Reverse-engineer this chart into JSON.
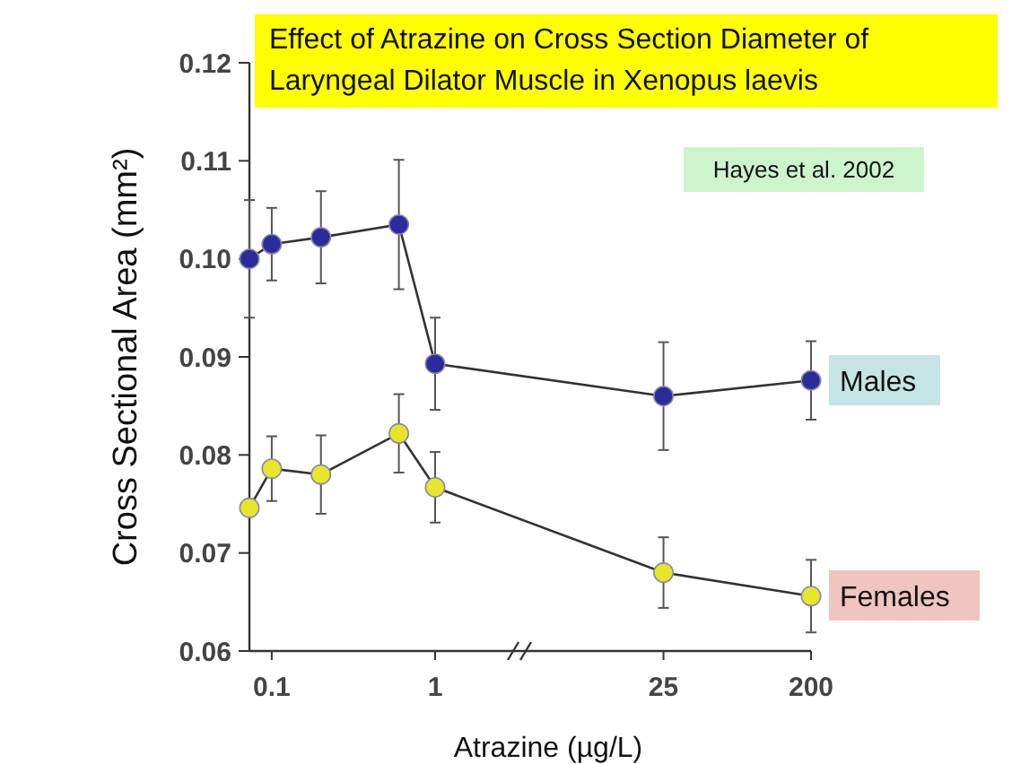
{
  "chart_data": {
    "type": "line",
    "title": "Effect of Atrazine on Cross Section Diameter of Laryngeal Dilator Muscle in Xenopus laevis",
    "xlabel": "Atrazine (µg/L)",
    "ylabel": "Cross Sectional Area (mm²)",
    "annotations": [
      "Hayes et al. 2002"
    ],
    "x": [
      0.073,
      0.1,
      0.2,
      0.6,
      1,
      25,
      200
    ],
    "series": [
      {
        "name": "Males",
        "color": "#2b2b9c",
        "values": [
          0.1,
          0.1015,
          0.1022,
          0.1035,
          0.0893,
          0.086,
          0.0876
        ],
        "errors": [
          0.006,
          0.0037,
          0.0047,
          0.0066,
          0.0047,
          0.0055,
          0.004
        ]
      },
      {
        "name": "Females",
        "color": "#e6e62a",
        "values": [
          0.0746,
          0.0786,
          0.078,
          0.0822,
          0.0767,
          0.068,
          0.0656
        ],
        "errors": [
          null,
          0.0033,
          0.004,
          0.004,
          0.0036,
          0.0036,
          0.0037
        ]
      }
    ],
    "log": "x",
    "xlim": [
      0.073,
      200
    ],
    "xticks": [
      0.1,
      1,
      25,
      200
    ],
    "ylim": [
      0.06,
      0.12
    ],
    "yticks": [
      0.06,
      0.07,
      0.08,
      0.09,
      {
        "value": 0.1,
        "label": "0.10"
      },
      0.11,
      0.12
    ],
    "marker": "circle",
    "grid": false
  }
}
